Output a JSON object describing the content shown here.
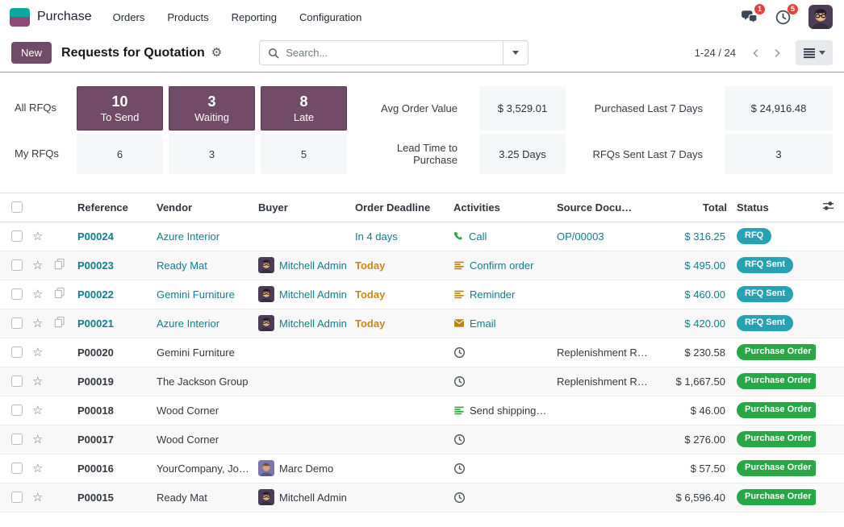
{
  "navbar": {
    "app_name": "Purchase",
    "menus": [
      "Orders",
      "Products",
      "Reporting",
      "Configuration"
    ],
    "messages_badge": "1",
    "activities_badge": "5"
  },
  "control_panel": {
    "new_label": "New",
    "title": "Requests for Quotation",
    "search_placeholder": "Search...",
    "pager": "1-24 / 24"
  },
  "dashboard": {
    "row_labels": [
      "All RFQs",
      "My RFQs"
    ],
    "all_buttons": [
      {
        "count": "10",
        "label": "To Send"
      },
      {
        "count": "3",
        "label": "Waiting"
      },
      {
        "count": "8",
        "label": "Late"
      }
    ],
    "my_counts": [
      "6",
      "3",
      "5"
    ],
    "kpis": [
      {
        "label": "Avg Order Value",
        "value": "$ 3,529.01"
      },
      {
        "label": "Purchased Last 7 Days",
        "value": "$ 24,916.48"
      },
      {
        "label": "Lead Time to Purchase",
        "value": "3.25 Days"
      },
      {
        "label": "RFQs Sent Last 7 Days",
        "value": "3"
      }
    ]
  },
  "table": {
    "headers": [
      "Reference",
      "Vendor",
      "Buyer",
      "Order Deadline",
      "Activities",
      "Source Docu…",
      "Total",
      "Status"
    ],
    "rows": [
      {
        "reference": "P00024",
        "vendor": "Azure Interior",
        "buyer": null,
        "deadline": "In 4 days",
        "deadline_kind": "info",
        "activity_icon": "phone",
        "activity_label": "Call",
        "source": "OP/00003",
        "total": "$ 316.25",
        "status": "RFQ",
        "status_kind": "info",
        "row_kind": "info",
        "has_copy": false
      },
      {
        "reference": "P00023",
        "vendor": "Ready Mat",
        "buyer": {
          "name": "Mitchell Admin",
          "avatar": "mitchell"
        },
        "deadline": "Today",
        "deadline_kind": "warning",
        "activity_icon": "bars_orange",
        "activity_label": "Confirm order",
        "source": "",
        "total": "$ 495.00",
        "status": "RFQ Sent",
        "status_kind": "info",
        "row_kind": "info",
        "has_copy": true
      },
      {
        "reference": "P00022",
        "vendor": "Gemini Furniture",
        "buyer": {
          "name": "Mitchell Admin",
          "avatar": "mitchell"
        },
        "deadline": "Today",
        "deadline_kind": "warning",
        "activity_icon": "bars_orange",
        "activity_label": "Reminder",
        "source": "",
        "total": "$ 460.00",
        "status": "RFQ Sent",
        "status_kind": "info",
        "row_kind": "info",
        "has_copy": true
      },
      {
        "reference": "P00021",
        "vendor": "Azure Interior",
        "buyer": {
          "name": "Mitchell Admin",
          "avatar": "mitchell"
        },
        "deadline": "Today",
        "deadline_kind": "warning",
        "activity_icon": "envelope",
        "activity_label": "Email",
        "source": "",
        "total": "$ 420.00",
        "status": "RFQ Sent",
        "status_kind": "info",
        "row_kind": "info",
        "has_copy": true
      },
      {
        "reference": "P00020",
        "vendor": "Gemini Furniture",
        "buyer": null,
        "deadline": "",
        "deadline_kind": "",
        "activity_icon": "clock",
        "activity_label": "",
        "source": "Replenishment R…",
        "total": "$ 230.58",
        "status": "Purchase Order",
        "status_kind": "success",
        "row_kind": "normal",
        "has_copy": false
      },
      {
        "reference": "P00019",
        "vendor": "The Jackson Group",
        "buyer": null,
        "deadline": "",
        "deadline_kind": "",
        "activity_icon": "clock",
        "activity_label": "",
        "source": "Replenishment R…",
        "total": "$ 1,667.50",
        "status": "Purchase Order",
        "status_kind": "success",
        "row_kind": "normal",
        "has_copy": false
      },
      {
        "reference": "P00018",
        "vendor": "Wood Corner",
        "buyer": null,
        "deadline": "",
        "deadline_kind": "",
        "activity_icon": "bars_green",
        "activity_label": "Send shipping…",
        "source": "",
        "total": "$ 46.00",
        "status": "Purchase Order",
        "status_kind": "success",
        "row_kind": "normal",
        "has_copy": false
      },
      {
        "reference": "P00017",
        "vendor": "Wood Corner",
        "buyer": null,
        "deadline": "",
        "deadline_kind": "",
        "activity_icon": "clock",
        "activity_label": "",
        "source": "",
        "total": "$ 276.00",
        "status": "Purchase Order",
        "status_kind": "success",
        "row_kind": "normal",
        "has_copy": false
      },
      {
        "reference": "P00016",
        "vendor": "YourCompany, Jo…",
        "buyer": {
          "name": "Marc Demo",
          "avatar": "marc"
        },
        "deadline": "",
        "deadline_kind": "",
        "activity_icon": "clock",
        "activity_label": "",
        "source": "",
        "total": "$ 57.50",
        "status": "Purchase Order",
        "status_kind": "success",
        "row_kind": "normal",
        "has_copy": false
      },
      {
        "reference": "P00015",
        "vendor": "Ready Mat",
        "buyer": {
          "name": "Mitchell Admin",
          "avatar": "mitchell"
        },
        "deadline": "",
        "deadline_kind": "",
        "activity_icon": "clock",
        "activity_label": "",
        "source": "",
        "total": "$ 6,596.40",
        "status": "Purchase Order",
        "status_kind": "success",
        "row_kind": "normal",
        "has_copy": false
      }
    ]
  },
  "colors": {
    "primary": "#714B67",
    "info_text": "#0d7f8d",
    "badge_info": "#25a2b3",
    "badge_success": "#28a745",
    "warning_text": "#c9871a",
    "badge_danger": "#e4413f"
  }
}
